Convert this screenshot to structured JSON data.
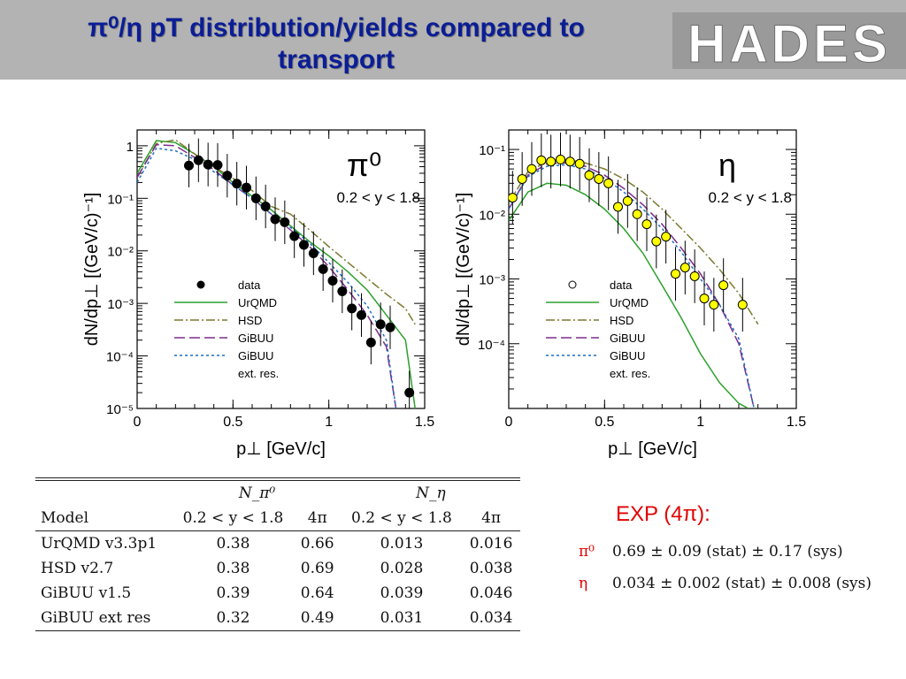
{
  "header": {
    "title_line1": "π⁰/η  pT distribution/yields compared to",
    "title_line2": "transport",
    "logo_text": "HADES"
  },
  "colors": {
    "header_bg": "#b3b3b3",
    "title": "#0b1d96",
    "data": "#000000",
    "data_fill_eta": "#ffff00",
    "urqmd": "#2ca02c",
    "hsd": "#7a7a2e",
    "gibuu": "#7b2d8b",
    "gibuu_ext": "#1f6fbf",
    "exp": "#e10000"
  },
  "chart_data": [
    {
      "type": "line",
      "panel_label": "π⁰",
      "cut_label": "0.2 < y < 1.8",
      "xlabel": "p⊥  [GeV/c]",
      "ylabel": "dN/dp⊥  [(GeV/c)⁻¹]",
      "xlim": [
        0,
        1.5
      ],
      "ylim": [
        1e-05,
        2
      ],
      "yscale": "log",
      "xticks": [
        "0",
        "0.5",
        "1",
        "1.5"
      ],
      "yticks": [
        "10⁻⁵",
        "10⁻⁴",
        "10⁻³",
        "10⁻²",
        "10⁻¹",
        "1"
      ],
      "legend": [
        "data",
        "UrQMD",
        "HSD",
        "GiBUU",
        "GiBUU",
        "ext. res."
      ],
      "legend_position": "lower-center",
      "data_points": [
        {
          "x": 0.27,
          "y": 0.42
        },
        {
          "x": 0.32,
          "y": 0.53
        },
        {
          "x": 0.37,
          "y": 0.44
        },
        {
          "x": 0.42,
          "y": 0.43
        },
        {
          "x": 0.47,
          "y": 0.27
        },
        {
          "x": 0.52,
          "y": 0.19
        },
        {
          "x": 0.57,
          "y": 0.16
        },
        {
          "x": 0.62,
          "y": 0.1
        },
        {
          "x": 0.67,
          "y": 0.07
        },
        {
          "x": 0.72,
          "y": 0.04
        },
        {
          "x": 0.77,
          "y": 0.035
        },
        {
          "x": 0.82,
          "y": 0.019
        },
        {
          "x": 0.87,
          "y": 0.013
        },
        {
          "x": 0.92,
          "y": 0.009
        },
        {
          "x": 0.97,
          "y": 0.0045
        },
        {
          "x": 1.02,
          "y": 0.0027
        },
        {
          "x": 1.07,
          "y": 0.0017
        },
        {
          "x": 1.12,
          "y": 0.0008
        },
        {
          "x": 1.17,
          "y": 0.0006
        },
        {
          "x": 1.22,
          "y": 0.00018
        },
        {
          "x": 1.27,
          "y": 0.0004
        },
        {
          "x": 1.32,
          "y": 0.00035
        },
        {
          "x": 1.42,
          "y": 2e-05
        }
      ],
      "series": [
        {
          "name": "UrQMD",
          "x": [
            0.0,
            0.1,
            0.2,
            0.3,
            0.4,
            0.5,
            0.6,
            0.7,
            0.8,
            0.9,
            1.0,
            1.1,
            1.2,
            1.3,
            1.4,
            1.45
          ],
          "y": [
            0.3,
            1.25,
            1.15,
            0.7,
            0.4,
            0.2,
            0.11,
            0.06,
            0.03,
            0.015,
            0.008,
            0.004,
            0.0018,
            0.0006,
            0.0002,
            1e-05
          ]
        },
        {
          "name": "HSD",
          "x": [
            0.0,
            0.1,
            0.2,
            0.3,
            0.4,
            0.5,
            0.6,
            0.7,
            0.8,
            0.9,
            1.0,
            1.1,
            1.2,
            1.3,
            1.4,
            1.45
          ],
          "y": [
            0.25,
            1.1,
            1.3,
            0.7,
            0.4,
            0.24,
            0.14,
            0.07,
            0.05,
            0.025,
            0.012,
            0.006,
            0.003,
            0.0015,
            0.0008,
            0.0004
          ]
        },
        {
          "name": "GiBUU",
          "x": [
            0.0,
            0.1,
            0.2,
            0.3,
            0.4,
            0.5,
            0.6,
            0.7,
            0.8,
            0.9,
            1.0,
            1.1,
            1.2,
            1.3,
            1.35
          ],
          "y": [
            0.25,
            1.05,
            1.0,
            0.6,
            0.35,
            0.18,
            0.1,
            0.05,
            0.025,
            0.012,
            0.005,
            0.0018,
            0.0006,
            0.00015,
            1e-05
          ]
        },
        {
          "name": "GiBUU ext. res.",
          "x": [
            0.0,
            0.1,
            0.2,
            0.3,
            0.4,
            0.5,
            0.6,
            0.7,
            0.8,
            0.9,
            1.0,
            1.1,
            1.2,
            1.3,
            1.35
          ],
          "y": [
            0.2,
            0.9,
            0.8,
            0.55,
            0.32,
            0.18,
            0.1,
            0.05,
            0.028,
            0.014,
            0.006,
            0.0025,
            0.0009,
            0.0002,
            1e-05
          ]
        }
      ]
    },
    {
      "type": "line",
      "panel_label": "η",
      "cut_label": "0.2 < y < 1.8",
      "xlabel": "p⊥  [GeV/c]",
      "ylabel": "dN/dp⊥  [(GeV/c)⁻¹]",
      "xlim": [
        0,
        1.5
      ],
      "ylim": [
        1e-05,
        0.2
      ],
      "yscale": "log",
      "xticks": [
        "0",
        "0.5",
        "1",
        "1.5"
      ],
      "yticks": [
        "10⁻⁴",
        "10⁻³",
        "10⁻²",
        "10⁻¹"
      ],
      "legend": [
        "data",
        "UrQMD",
        "HSD",
        "GiBUU",
        "GiBUU",
        "ext. res."
      ],
      "legend_position": "lower-center",
      "data_points": [
        {
          "x": 0.02,
          "y": 0.018
        },
        {
          "x": 0.07,
          "y": 0.035
        },
        {
          "x": 0.12,
          "y": 0.05
        },
        {
          "x": 0.17,
          "y": 0.068
        },
        {
          "x": 0.22,
          "y": 0.065
        },
        {
          "x": 0.27,
          "y": 0.07
        },
        {
          "x": 0.32,
          "y": 0.065
        },
        {
          "x": 0.37,
          "y": 0.06
        },
        {
          "x": 0.42,
          "y": 0.04
        },
        {
          "x": 0.47,
          "y": 0.035
        },
        {
          "x": 0.52,
          "y": 0.03
        },
        {
          "x": 0.57,
          "y": 0.013
        },
        {
          "x": 0.62,
          "y": 0.016
        },
        {
          "x": 0.67,
          "y": 0.01
        },
        {
          "x": 0.72,
          "y": 0.007
        },
        {
          "x": 0.77,
          "y": 0.0038
        },
        {
          "x": 0.82,
          "y": 0.0045
        },
        {
          "x": 0.87,
          "y": 0.0012
        },
        {
          "x": 0.92,
          "y": 0.0015
        },
        {
          "x": 0.97,
          "y": 0.0011
        },
        {
          "x": 1.02,
          "y": 0.0005
        },
        {
          "x": 1.07,
          "y": 0.0004
        },
        {
          "x": 1.12,
          "y": 0.0008
        },
        {
          "x": 1.22,
          "y": 0.0004
        }
      ],
      "series": [
        {
          "name": "UrQMD",
          "x": [
            0.0,
            0.1,
            0.2,
            0.3,
            0.4,
            0.5,
            0.6,
            0.7,
            0.8,
            0.9,
            1.0,
            1.1,
            1.2,
            1.25
          ],
          "y": [
            0.008,
            0.022,
            0.03,
            0.028,
            0.02,
            0.012,
            0.006,
            0.0025,
            0.0008,
            0.00025,
            7e-05,
            2.5e-05,
            1.2e-05,
            1e-05
          ]
        },
        {
          "name": "HSD",
          "x": [
            0.0,
            0.1,
            0.2,
            0.3,
            0.4,
            0.5,
            0.6,
            0.7,
            0.8,
            0.9,
            1.0,
            1.1,
            1.2,
            1.3
          ],
          "y": [
            0.015,
            0.045,
            0.065,
            0.07,
            0.062,
            0.05,
            0.035,
            0.022,
            0.012,
            0.006,
            0.003,
            0.0014,
            0.0006,
            0.0002
          ]
        },
        {
          "name": "GiBUU",
          "x": [
            0.0,
            0.1,
            0.2,
            0.3,
            0.4,
            0.5,
            0.6,
            0.7,
            0.8,
            0.9,
            1.0,
            1.1,
            1.2,
            1.28
          ],
          "y": [
            0.012,
            0.04,
            0.06,
            0.062,
            0.055,
            0.04,
            0.025,
            0.014,
            0.007,
            0.003,
            0.0012,
            0.0004,
            0.0001,
            1e-05
          ]
        },
        {
          "name": "GiBUU ext. res.",
          "x": [
            0.0,
            0.1,
            0.2,
            0.3,
            0.4,
            0.5,
            0.6,
            0.7,
            0.8,
            0.9,
            1.0,
            1.1,
            1.2,
            1.28
          ],
          "y": [
            0.012,
            0.038,
            0.055,
            0.058,
            0.05,
            0.036,
            0.022,
            0.012,
            0.006,
            0.0026,
            0.001,
            0.0004,
            0.00012,
            1e-05
          ]
        }
      ]
    },
    {
      "type": "table",
      "group_headers": [
        "N_π⁰",
        "N_η"
      ],
      "columns": [
        "Model",
        "0.2 < y < 1.8",
        "4π",
        "0.2 < y < 1.8",
        "4π"
      ],
      "rows": [
        [
          "UrQMD v3.3p1",
          "0.38",
          "0.66",
          "0.013",
          "0.016"
        ],
        [
          "HSD v2.7",
          "0.38",
          "0.69",
          "0.028",
          "0.038"
        ],
        [
          "GiBUU v1.5",
          "0.39",
          "0.64",
          "0.039",
          "0.046"
        ],
        [
          "GiBUU ext res",
          "0.32",
          "0.49",
          "0.031",
          "0.034"
        ]
      ]
    }
  ],
  "exp": {
    "title": "EXP (4π):",
    "pi0_symbol": "π⁰",
    "pi0_value": "0.69 ± 0.09 (stat)  ± 0.17 (sys)",
    "eta_symbol": "η",
    "eta_value": "0.034 ± 0.002 (stat)  ± 0.008 (sys)"
  }
}
